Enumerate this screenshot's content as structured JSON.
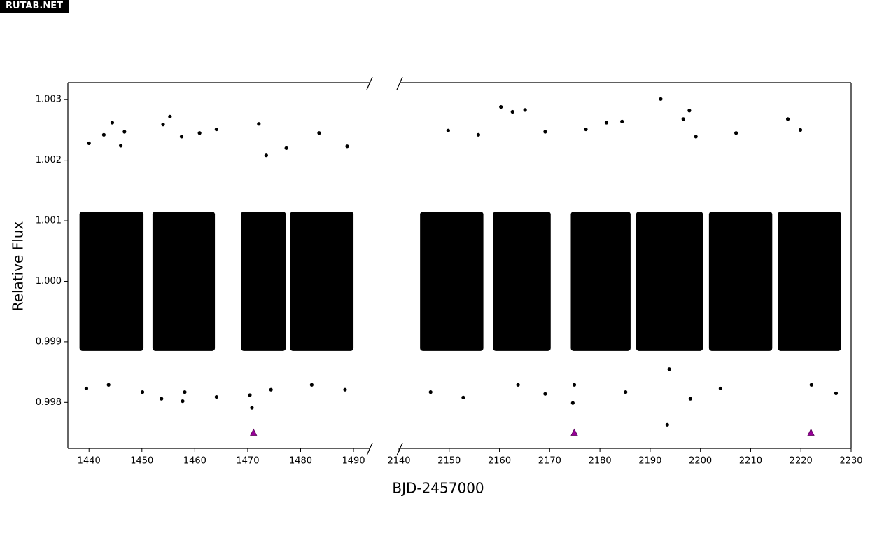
{
  "watermark": "RUTAB.NET",
  "chart_data": {
    "type": "scatter",
    "xlabel": "BJD-2457000",
    "ylabel": "Relative Flux",
    "color": "#000000",
    "ylim": [
      0.99724,
      1.00328
    ],
    "yticks": [
      0.998,
      0.999,
      {
        "value": 1,
        "label": "1.000"
      },
      1.001,
      1.002,
      1.003
    ],
    "panels": [
      {
        "xlim": [
          1436,
          1493.3
        ],
        "xticks": [
          1440,
          1450,
          1460,
          1470,
          1480,
          1490
        ],
        "segments": [
          {
            "x": [
              1438.2,
              1450.3
            ],
            "y": [
              0.99885,
              1.00115
            ]
          },
          {
            "x": [
              1452,
              1463.8
            ],
            "y": [
              0.99885,
              1.00115
            ]
          },
          {
            "x": [
              1468.7,
              1477.2
            ],
            "y": [
              0.99885,
              1.00115
            ]
          },
          {
            "x": [
              1478,
              1490
            ],
            "y": [
              0.99885,
              1.00115
            ]
          }
        ],
        "x": [
          1440,
          1444.4,
          1442.8,
          1446.7,
          1446,
          1439.5,
          1443.7,
          1450.1,
          1453.7,
          1455.3,
          1454,
          1457.5,
          1460.9,
          1464.1,
          1457.7,
          1458.1,
          1464.1,
          1472.1,
          1473.5,
          1477.3,
          1470.8,
          1470.4,
          1474.4,
          1483.5,
          1488.8,
          1488.4,
          1482.1
        ],
        "y": [
          1.00228,
          1.00262,
          1.00242,
          1.00247,
          1.00224,
          0.99823,
          0.99829,
          0.99817,
          0.99806,
          1.00272,
          1.00259,
          1.00239,
          1.00245,
          1.00251,
          0.99802,
          0.99817,
          0.99809,
          1.0026,
          1.00208,
          1.0022,
          0.99791,
          0.99812,
          0.99821,
          1.00245,
          1.00223,
          0.99821,
          0.99829
        ],
        "markers": {
          "x": [
            1471.1
          ],
          "y": [
            0.9975
          ],
          "color": "#990099"
        }
      },
      {
        "xlim": [
          2140,
          2230
        ],
        "xticks": [
          2140,
          2150,
          2160,
          2170,
          2180,
          2190,
          2200,
          2210,
          2220,
          2230
        ],
        "segments": [
          {
            "x": [
              2144.2,
              2156.8
            ],
            "y": [
              0.99885,
              1.00115
            ]
          },
          {
            "x": [
              2158.7,
              2170.2
            ],
            "y": [
              0.99885,
              1.00115
            ]
          },
          {
            "x": [
              2174.2,
              2186.1
            ],
            "y": [
              0.99885,
              1.00115
            ]
          },
          {
            "x": [
              2187.2,
              2200.5
            ],
            "y": [
              0.99885,
              1.00115
            ]
          },
          {
            "x": [
              2201.7,
              2214.3
            ],
            "y": [
              0.99885,
              1.00115
            ]
          },
          {
            "x": [
              2215.4,
              2228
            ],
            "y": [
              0.99885,
              1.00115
            ]
          }
        ],
        "x": [
          2160.3,
          2162.6,
          2165.1,
          2149.8,
          2155.8,
          2152.8,
          2146.3,
          2163.7,
          2169.1,
          2169.1,
          2177.2,
          2181.3,
          2184.4,
          2174.9,
          2174.6,
          2185.1,
          2192.1,
          2197.8,
          2196.6,
          2193.4,
          2193.8,
          2198,
          2207.1,
          2204,
          2217.4,
          2219.9,
          2222.1,
          2227,
          2199.1
        ],
        "y": [
          1.00288,
          1.0028,
          1.00283,
          1.00249,
          1.00242,
          0.99808,
          0.99817,
          0.99829,
          0.99814,
          1.00247,
          1.00251,
          1.00262,
          1.00264,
          0.99829,
          0.99799,
          0.99817,
          1.00301,
          1.00282,
          1.00268,
          0.99763,
          0.99855,
          0.99806,
          1.00245,
          0.99823,
          1.00268,
          1.0025,
          0.99829,
          0.99815,
          1.00239
        ],
        "markers": {
          "x": [
            2174.9,
            2222
          ],
          "y": [
            0.9975,
            0.9975
          ],
          "color": "#990099"
        }
      }
    ]
  }
}
